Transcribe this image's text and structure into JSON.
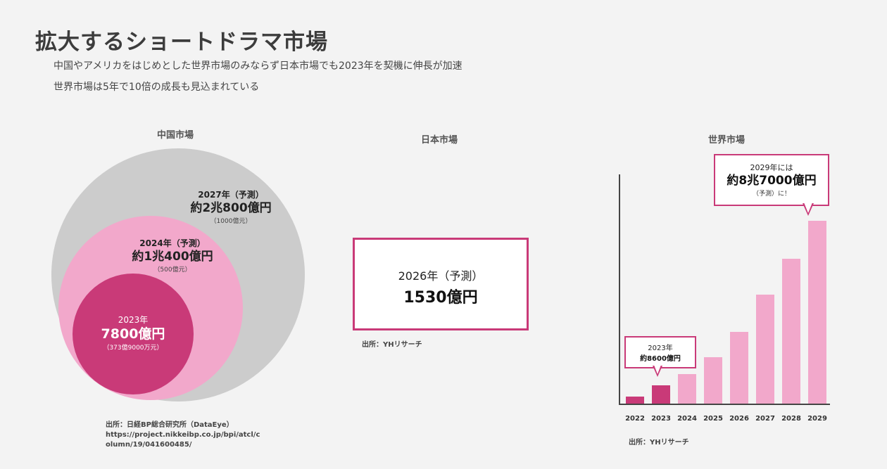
{
  "header": {
    "title": "拡大するショートドラマ市場",
    "subtitle1": "中国やアメリカをはじめとした世界市場のみならず日本市場でも2023年を契機に伸長が加速",
    "subtitle2": "世界市場は5年で10倍の成長も見込まれている"
  },
  "china": {
    "title": "中国市場",
    "outer": {
      "year": "2027年（予測）",
      "value": "約2兆800億円",
      "note": "（1000億元）"
    },
    "middle": {
      "year": "2024年（予測）",
      "value": "約1兆400億円",
      "note": "（500億元）"
    },
    "inner": {
      "year": "2023年",
      "value": "7800億円",
      "note": "（373億9000万元）"
    },
    "source_lines": [
      "出所：日経BP総合研究所（DataEye）",
      "https://project.nikkeibp.co.jp/bpi/atcl/c",
      "olumn/19/041600485/"
    ]
  },
  "japan": {
    "title": "日本市場",
    "year": "2026年（予測）",
    "value": "1530億円",
    "source": "出所：YHリサーチ"
  },
  "world": {
    "title": "世界市場",
    "callout_2029": {
      "line1": "2029年には",
      "line2": "約8兆7000億円",
      "line3": "（予測）に！"
    },
    "callout_2023": {
      "line1": "2023年",
      "line2": "約8600億円"
    },
    "source": "出所：YHリサーチ"
  },
  "chart_data": {
    "type": "bar",
    "title": "世界市場",
    "categories": [
      "2022",
      "2023",
      "2024",
      "2025",
      "2026",
      "2027",
      "2028",
      "2029"
    ],
    "values": [
      0.35,
      0.86,
      1.4,
      2.2,
      3.4,
      5.2,
      6.9,
      8.7
    ],
    "unit": "兆円",
    "highlight": [
      "2022",
      "2023"
    ],
    "colors": {
      "highlight": "#c93a78",
      "default": "#f2a8cb"
    }
  },
  "colors": {
    "accent": "#c93a78",
    "light_pink": "#f2a8cb",
    "gray_circle": "#cccccc",
    "background": "#f3f3f3"
  }
}
